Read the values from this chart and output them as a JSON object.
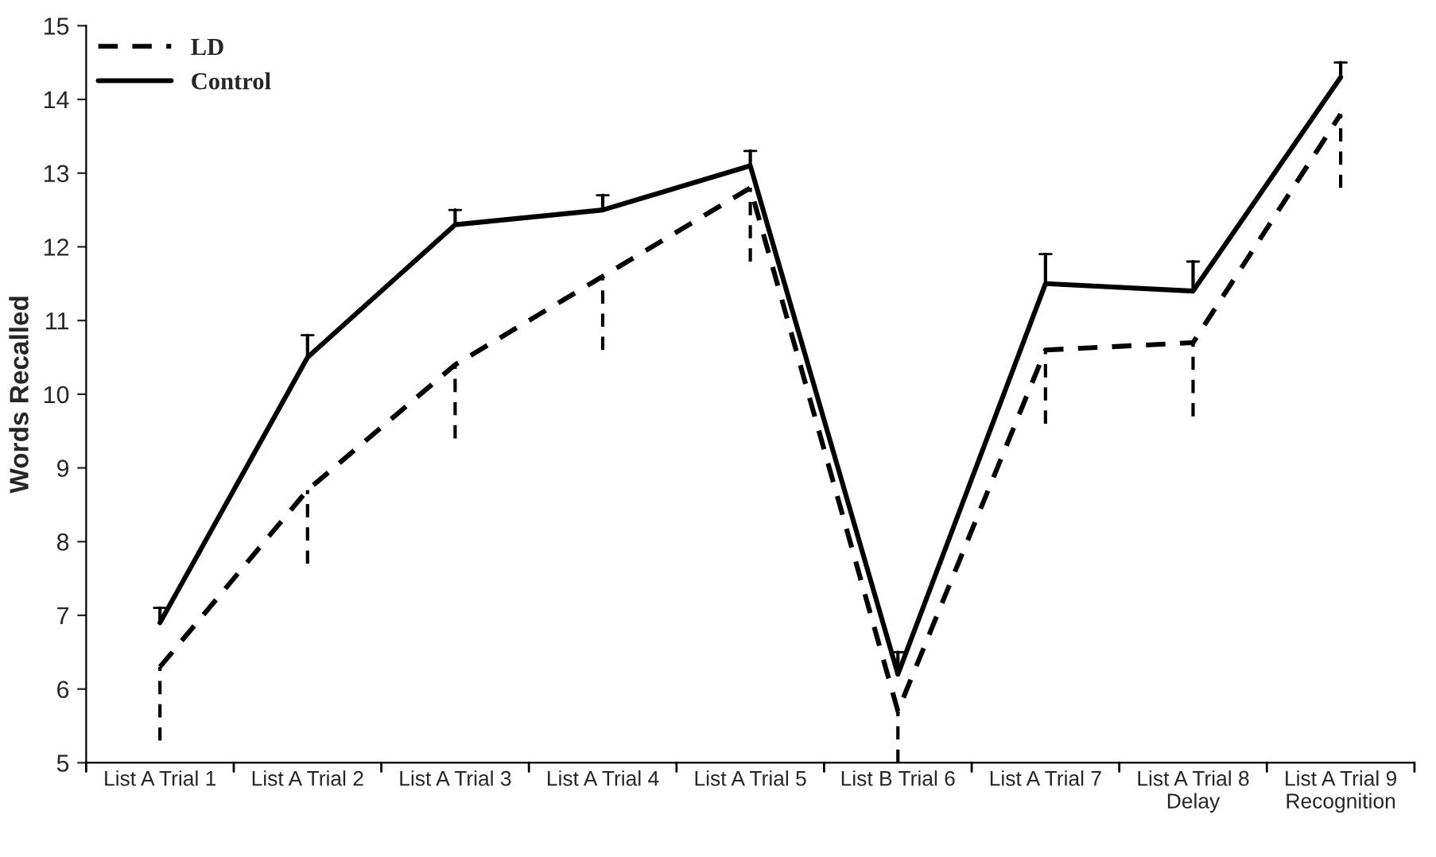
{
  "chart_data": {
    "type": "line",
    "ylabel": "Words Recalled",
    "categories": [
      "List A Trial 1",
      "List A Trial 2",
      "List A Trial 3",
      "List A Trial 4",
      "List A Trial 5",
      "List B Trial 6",
      "List A Trial 7",
      "List A Trial 8\nDelay",
      "List A Trial 9\nRecognition"
    ],
    "series": [
      {
        "name": "LD",
        "color": "#000000",
        "line_style": "dashed",
        "values": [
          6.3,
          8.7,
          10.4,
          11.6,
          12.8,
          5.7,
          10.6,
          10.7,
          13.8
        ],
        "errors": [
          [
            5.3,
            6.3
          ],
          [
            7.7,
            8.7
          ],
          [
            9.4,
            10.4
          ],
          [
            10.6,
            11.6
          ],
          [
            11.8,
            12.8
          ],
          [
            5.0,
            5.7
          ],
          [
            9.6,
            10.6
          ],
          [
            9.7,
            10.7
          ],
          [
            12.8,
            13.8
          ]
        ]
      },
      {
        "name": "Control",
        "color": "#000000",
        "line_style": "solid",
        "values": [
          6.9,
          10.5,
          12.3,
          12.5,
          13.1,
          6.2,
          11.5,
          11.4,
          14.3
        ],
        "errors": [
          [
            6.9,
            7.1
          ],
          [
            10.5,
            10.8
          ],
          [
            12.3,
            12.5
          ],
          [
            12.5,
            12.7
          ],
          [
            13.1,
            13.3
          ],
          [
            6.2,
            6.5
          ],
          [
            11.5,
            11.9
          ],
          [
            11.4,
            11.8
          ],
          [
            14.3,
            14.5
          ]
        ]
      }
    ],
    "ylim": [
      5,
      15
    ],
    "yticks": [
      5,
      6,
      7,
      8,
      9,
      10,
      11,
      12,
      13,
      14,
      15
    ],
    "grid": false,
    "legend": "top left",
    "marker": "none"
  }
}
